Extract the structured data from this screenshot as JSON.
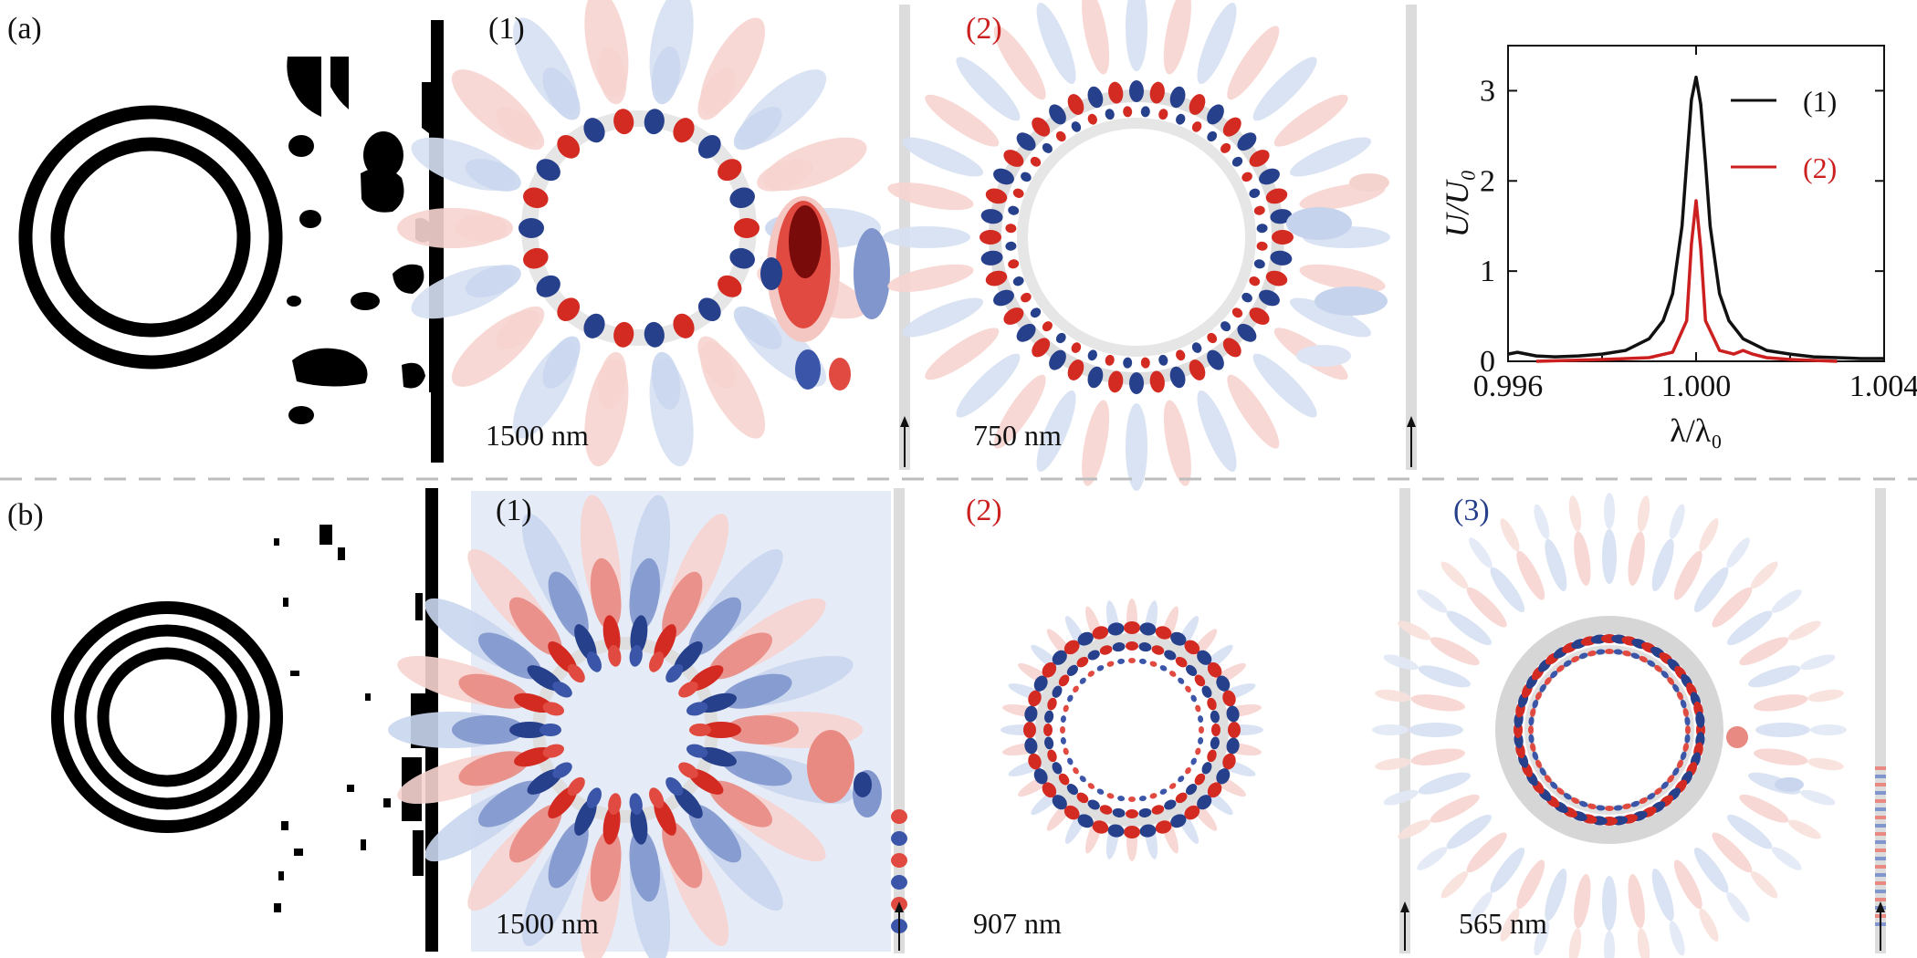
{
  "colors": {
    "red": "#cc1f1f",
    "blue": "#26408b",
    "black": "#111111",
    "divider": "#bdbdbd"
  },
  "row_a": {
    "label": "(a)",
    "panels": [
      {
        "label": "(1)",
        "scale": "1500 nm",
        "label_color": "black"
      },
      {
        "label": "(2)",
        "scale": "750 nm",
        "label_color": "red"
      }
    ]
  },
  "row_b": {
    "label": "(b)",
    "panels": [
      {
        "label": "(1)",
        "scale": "1500 nm",
        "label_color": "black"
      },
      {
        "label": "(2)",
        "scale": "907 nm",
        "label_color": "red"
      },
      {
        "label": "(3)",
        "scale": "565 nm",
        "label_color": "blue"
      }
    ]
  },
  "chart_data": {
    "type": "line",
    "xlabel": "λ/λ₀",
    "ylabel": "U/U₀",
    "xlim": [
      0.996,
      1.004
    ],
    "ylim": [
      0,
      3.5
    ],
    "xticks": [
      "0.996",
      "1.000",
      "1.004"
    ],
    "yticks": [
      "0",
      "1",
      "2",
      "3"
    ],
    "legend_position": "top-right",
    "series": [
      {
        "name": "(1)",
        "color": "#111111",
        "x": [
          0.996,
          0.9962,
          0.9966,
          0.997,
          0.9975,
          0.998,
          0.9985,
          0.999,
          0.9993,
          0.9995,
          0.9997,
          0.9998,
          0.9999,
          1.0,
          1.0001,
          1.0002,
          1.0003,
          1.0005,
          1.0007,
          1.001,
          1.0015,
          1.002,
          1.0025,
          1.003,
          1.0035,
          1.004
        ],
        "y": [
          0.08,
          0.1,
          0.06,
          0.05,
          0.06,
          0.08,
          0.12,
          0.25,
          0.45,
          0.75,
          1.5,
          2.2,
          2.9,
          3.15,
          2.85,
          2.2,
          1.5,
          0.75,
          0.45,
          0.25,
          0.12,
          0.08,
          0.05,
          0.04,
          0.03,
          0.03
        ]
      },
      {
        "name": "(2)",
        "color": "#cc1f1f",
        "x": [
          0.9966,
          0.998,
          0.999,
          0.9995,
          0.9998,
          0.9999,
          1.0,
          1.0001,
          1.0002,
          1.0005,
          1.0008,
          1.001,
          1.0012,
          1.0015,
          1.002,
          1.0025,
          1.003
        ],
        "y": [
          0.0,
          0.02,
          0.04,
          0.1,
          0.45,
          1.3,
          1.78,
          1.25,
          0.45,
          0.12,
          0.08,
          0.12,
          0.08,
          0.04,
          0.02,
          0.01,
          0.0
        ]
      }
    ]
  }
}
